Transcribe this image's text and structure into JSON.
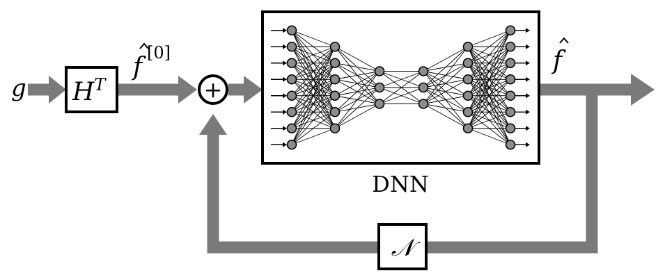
{
  "labels": {
    "input": "g",
    "transpose_block": "H",
    "transpose_sup": "T",
    "initial_estimate": "f",
    "initial_sup": "[0]",
    "sum_symbol": "+",
    "output": "f",
    "dnn_caption": "DNN",
    "noise_block": "𝒩"
  },
  "network": {
    "layer_sizes": [
      8,
      6,
      3,
      3,
      6,
      8
    ],
    "input_arrows": 8,
    "output_arrows": 8
  }
}
